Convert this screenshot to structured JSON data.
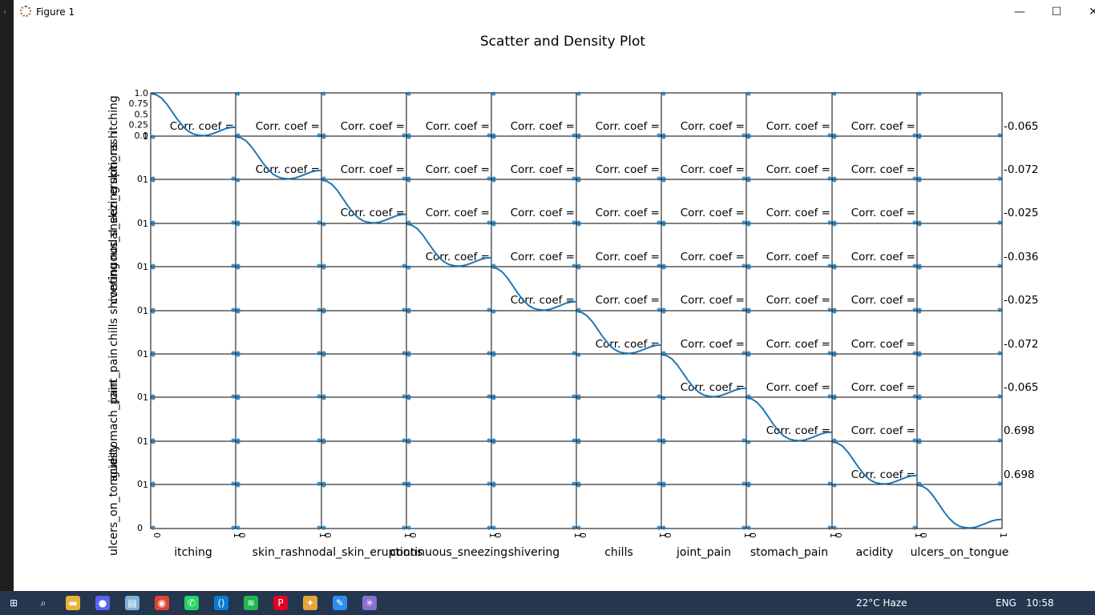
{
  "window": {
    "title": "Figure 1",
    "minimize": "—",
    "maximize": "☐",
    "close": "✕"
  },
  "chart_data": {
    "type": "scatter_matrix",
    "title": "Scatter and Density Plot",
    "variables": [
      "itching",
      "skin_rash",
      "nodal_skin_eruptions",
      "continuous_sneezing",
      "shivering",
      "chills",
      "joint_pain",
      "stomach_pain",
      "acidity",
      "ulcers_on_tongue"
    ],
    "diagonal": "kde",
    "first_diag_yticks": [
      "1.0",
      "0.75",
      "0.5",
      "0.25",
      "0.0"
    ],
    "binary_ticks": [
      "0",
      "1"
    ],
    "annotation_prefix": "Corr. coef =",
    "row_coefficients": [
      "-0.065",
      "-0.072",
      "-0.025",
      "-0.036",
      "-0.025",
      "-0.072",
      "-0.065",
      "0.698",
      "0.698"
    ],
    "density_curve": [
      1.0,
      0.98,
      0.9,
      0.76,
      0.58,
      0.4,
      0.24,
      0.12,
      0.05,
      0.02,
      0.01,
      0.03,
      0.07,
      0.12,
      0.17,
      0.2,
      0.21
    ]
  },
  "taskbar": {
    "icons": [
      "windows-start-icon",
      "search-icon",
      "file-explorer-icon",
      "discord-icon",
      "notepad-icon",
      "chrome-icon",
      "whatsapp-icon",
      "vscode-icon",
      "spotify-icon",
      "pinterest-icon",
      "tools-icon",
      "pen-icon",
      "figure-app-icon"
    ],
    "weather": "22°C  Haze",
    "language": "ENG",
    "time": "10:58"
  }
}
